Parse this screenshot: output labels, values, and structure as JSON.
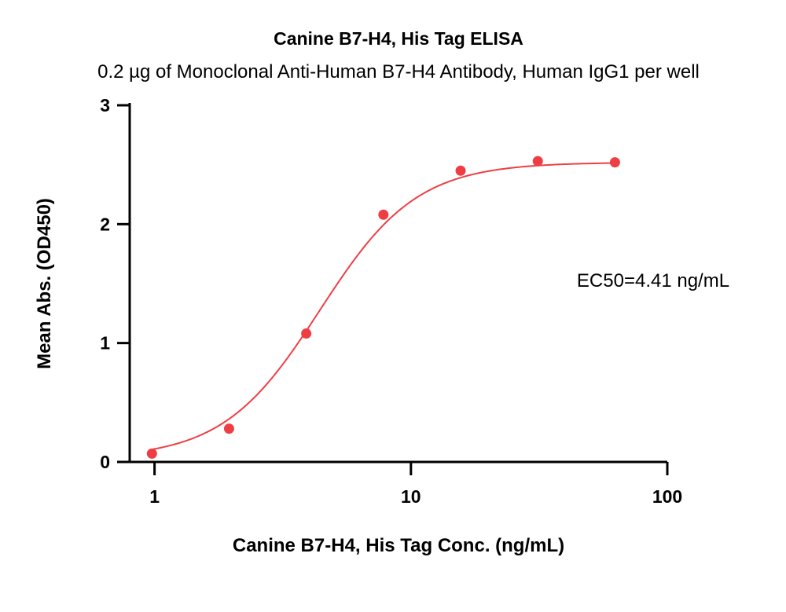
{
  "chart_data": {
    "type": "scatter",
    "title": "Canine B7-H4, His Tag ELISA",
    "subtitle": "0.2 µg of Monoclonal Anti-Human B7-H4 Antibody, Human IgG1 per well",
    "xlabel": "Canine B7-H4, His Tag Conc. (ng/mL)",
    "ylabel": "Mean Abs. (OD450)",
    "x_scale": "log",
    "xlim": [
      0.8,
      100
    ],
    "ylim": [
      0,
      3
    ],
    "x_ticks": [
      {
        "value": 1,
        "label": "1"
      },
      {
        "value": 10,
        "label": "10"
      },
      {
        "value": 100,
        "label": "100"
      }
    ],
    "y_ticks": [
      {
        "value": 0,
        "label": "0"
      },
      {
        "value": 1,
        "label": "1"
      },
      {
        "value": 2,
        "label": "2"
      },
      {
        "value": 3,
        "label": "3"
      }
    ],
    "series": [
      {
        "x": [
          0.977,
          1.953,
          3.906,
          7.813,
          15.625,
          31.25,
          62.5
        ],
        "y": [
          0.07,
          0.28,
          1.08,
          2.08,
          2.45,
          2.53,
          2.52
        ],
        "color": "#ee3e44",
        "fit": "4PL sigmoid",
        "fit_params": {
          "bottom": 0.03,
          "top": 2.52,
          "ec50": 4.41,
          "hill": 2.3
        }
      }
    ],
    "annotations": [
      "EC50=4.41 ng/mL"
    ],
    "grid": false,
    "legend": "none"
  }
}
